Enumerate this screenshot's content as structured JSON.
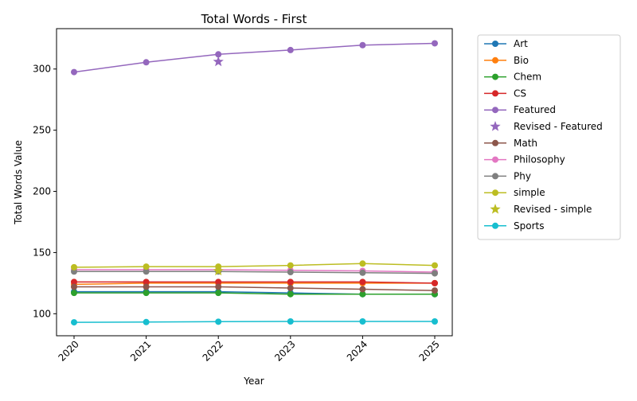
{
  "chart_data": {
    "type": "line",
    "title": "Total Words - First",
    "xlabel": "Year",
    "ylabel": "Total Words Value",
    "x": [
      2020,
      2021,
      2022,
      2023,
      2024,
      2025
    ],
    "ylim": [
      82,
      333
    ],
    "yticks": [
      100,
      150,
      200,
      250,
      300
    ],
    "grid": false,
    "legend_position": "outside-right",
    "series": [
      {
        "name": "Art",
        "color": "#1f77b4",
        "values": [
          118,
          118,
          118,
          117,
          116,
          116
        ]
      },
      {
        "name": "Bio",
        "color": "#ff7f0e",
        "values": [
          124,
          125,
          125,
          125,
          125,
          125
        ]
      },
      {
        "name": "Chem",
        "color": "#2ca02c",
        "values": [
          117,
          117,
          117,
          116,
          116,
          116
        ]
      },
      {
        "name": "CS",
        "color": "#d62728",
        "values": [
          126,
          126,
          126,
          126,
          126,
          125
        ]
      },
      {
        "name": "Featured",
        "color": "#9467bd",
        "values": [
          297.5,
          305.5,
          312,
          315.5,
          319.5,
          321
        ]
      },
      {
        "name": "Math",
        "color": "#8c564b",
        "values": [
          122,
          122,
          122,
          121,
          120,
          119
        ]
      },
      {
        "name": "Philosophy",
        "color": "#e377c2",
        "values": [
          136,
          136,
          136,
          135.5,
          135,
          134
        ]
      },
      {
        "name": "Phy",
        "color": "#7f7f7f",
        "values": [
          134.5,
          134.5,
          134.5,
          134,
          133.5,
          133
        ]
      },
      {
        "name": "simple",
        "color": "#bcbd22",
        "values": [
          138,
          138.5,
          138.5,
          139.5,
          141,
          139.5
        ]
      },
      {
        "name": "Sports",
        "color": "#17becf",
        "values": [
          93,
          93.2,
          93.5,
          93.7,
          93.7,
          93.7
        ]
      }
    ],
    "revised_points": [
      {
        "name": "Revised - Featured",
        "color": "#9467bd",
        "x": 2022,
        "y": 306
      },
      {
        "name": "Revised - simple",
        "color": "#bcbd22",
        "x": 2022,
        "y": 135
      }
    ],
    "legend_order": [
      "Art",
      "Bio",
      "Chem",
      "CS",
      "Featured",
      "Revised - Featured",
      "Math",
      "Philosophy",
      "Phy",
      "simple",
      "Revised - simple",
      "Sports"
    ]
  }
}
